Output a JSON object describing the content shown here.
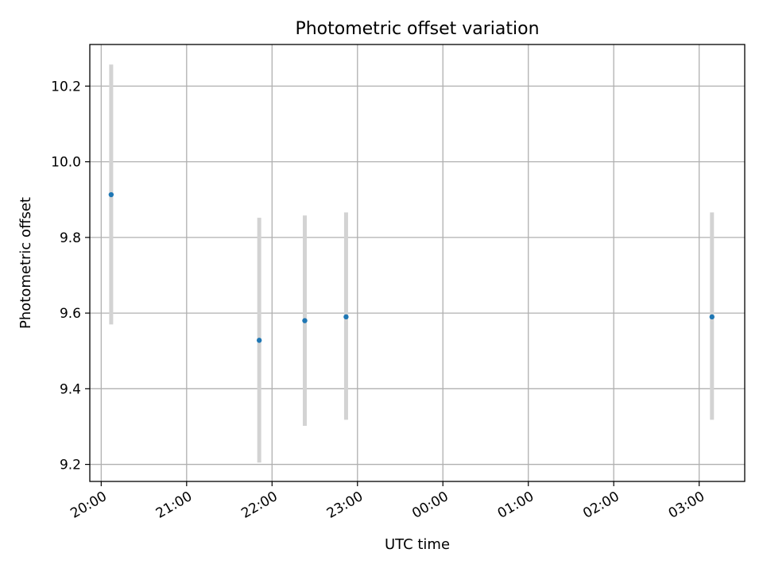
{
  "chart_data": {
    "type": "scatter",
    "title": "Photometric offset variation",
    "xlabel": "UTC time",
    "ylabel": "Photometric offset",
    "x_axis": {
      "kind": "time",
      "range": [
        "19:52",
        "03:32"
      ],
      "ticks": [
        {
          "time": "20:00",
          "label": "20:00"
        },
        {
          "time": "21:00",
          "label": "21:00"
        },
        {
          "time": "22:00",
          "label": "22:00"
        },
        {
          "time": "23:00",
          "label": "23:00"
        },
        {
          "time": "00:00",
          "label": "00:00"
        },
        {
          "time": "01:00",
          "label": "01:00"
        },
        {
          "time": "02:00",
          "label": "02:00"
        },
        {
          "time": "03:00",
          "label": "03:00"
        }
      ]
    },
    "y_axis": {
      "range": [
        9.155,
        10.31
      ],
      "ticks": [
        9.2,
        9.4,
        9.6,
        9.8,
        10.0,
        10.2
      ],
      "tick_labels": [
        "9.2",
        "9.4",
        "9.6",
        "9.8",
        "10.0",
        "10.2"
      ]
    },
    "grid": true,
    "point_color": "#1f77b4",
    "errorbar_color": "#d3d3d3",
    "points": [
      {
        "time": "20:07",
        "y": 9.913,
        "yerr_low": 9.57,
        "yerr_high": 10.257
      },
      {
        "time": "21:51",
        "y": 9.528,
        "yerr_low": 9.205,
        "yerr_high": 9.852
      },
      {
        "time": "22:23",
        "y": 9.58,
        "yerr_low": 9.302,
        "yerr_high": 9.858
      },
      {
        "time": "22:52",
        "y": 9.59,
        "yerr_low": 9.318,
        "yerr_high": 9.866
      },
      {
        "time": "03:09",
        "y": 9.59,
        "yerr_low": 9.318,
        "yerr_high": 9.866
      }
    ]
  }
}
